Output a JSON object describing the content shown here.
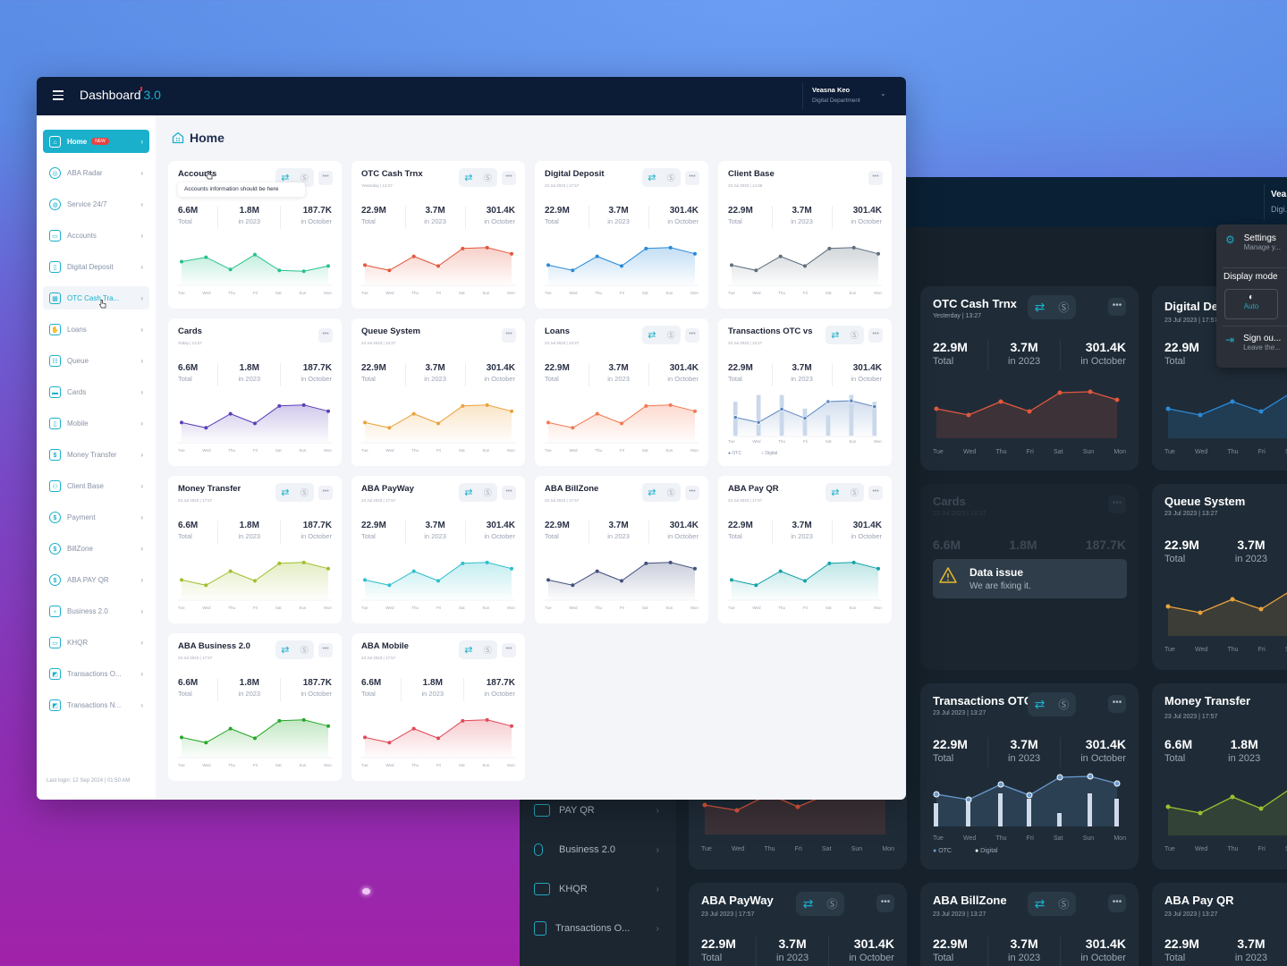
{
  "colors": {
    "accent": "#1ab0cc",
    "topbar": "#0c1b36",
    "badge": "#e8423f"
  },
  "app": {
    "title": "Dashboard",
    "version": "3.0",
    "user_name": "Veasna Keo",
    "user_department": "Digital Department"
  },
  "sidebar": {
    "items": [
      {
        "label": "Home",
        "badge": "NEW",
        "icon": "home-icon",
        "active": true
      },
      {
        "label": "ABA Radar",
        "icon": "radar-icon"
      },
      {
        "label": "Service 24/7",
        "icon": "service-24-7-icon"
      },
      {
        "label": "Accounts",
        "icon": "wallet-icon"
      },
      {
        "label": "Digital Deposit",
        "icon": "digital-deposit-icon"
      },
      {
        "label": "OTC Cash Tra...",
        "icon": "bank-building-icon",
        "hover": true
      },
      {
        "label": "Loans",
        "icon": "loan-hand-icon"
      },
      {
        "label": "Queue",
        "icon": "queue-people-icon"
      },
      {
        "label": "Cards",
        "icon": "card-icon"
      },
      {
        "label": "Mobile",
        "icon": "mobile-icon"
      },
      {
        "label": "Money Transfer",
        "icon": "money-transfer-icon"
      },
      {
        "label": "Client Base",
        "icon": "client-base-icon"
      },
      {
        "label": "Payment",
        "icon": "dollar-circle-icon"
      },
      {
        "label": "BillZone",
        "icon": "dollar-circle-icon"
      },
      {
        "label": "ABA PAY QR",
        "icon": "dollar-circle-icon"
      },
      {
        "label": "Business 2.0",
        "icon": "tie-icon"
      },
      {
        "label": "KHQR",
        "icon": "khqr-icon"
      },
      {
        "label": "Transactions O...",
        "icon": "chart-icon"
      },
      {
        "label": "Transactions N...",
        "icon": "chart-icon"
      }
    ],
    "last_login": "Last login: 12 Sep 2024 | 01:50 AM"
  },
  "main": {
    "page_title": "Home",
    "tooltip": "Accounts information should be here",
    "days": [
      "Tue",
      "Wed",
      "Thu",
      "Fri",
      "Sat",
      "Sun",
      "Mon"
    ],
    "cards": [
      {
        "title": "Accounts",
        "subtitle": "",
        "total": "6.6M",
        "total_label": "Total",
        "year": "1.8M",
        "year_label": "in 2023",
        "month": "187.7K",
        "month_label": "in October",
        "color": "#27c28a",
        "actions": true,
        "values": [
          62,
          67,
          53,
          70,
          52,
          51,
          57
        ]
      },
      {
        "title": "OTC Cash Trnx",
        "subtitle": "Yesterday | 13:27",
        "total": "22.9M",
        "total_label": "Total",
        "year": "3.7M",
        "year_label": "in 2023",
        "month": "301.4K",
        "month_label": "in October",
        "color": "#e2583e",
        "actions": true,
        "values": [
          58,
          52,
          68,
          57,
          77,
          78,
          71
        ]
      },
      {
        "title": "Digital Deposit",
        "subtitle": "23 Jul 2023 | 17:57",
        "total": "22.9M",
        "total_label": "Total",
        "year": "3.7M",
        "year_label": "in 2023",
        "month": "301.4K",
        "month_label": "in October",
        "color": "#2a8ad8",
        "actions": true,
        "values": [
          58,
          52,
          68,
          57,
          77,
          78,
          71
        ]
      },
      {
        "title": "Client Base",
        "subtitle": "23 Jul 2023 | 14:38",
        "total": "22.9M",
        "total_label": "Total",
        "year": "3.7M",
        "year_label": "in 2023",
        "month": "301.4K",
        "month_label": "in October",
        "color": "#5f6e7c",
        "actions": false,
        "values": [
          58,
          52,
          68,
          57,
          77,
          78,
          71
        ]
      },
      {
        "title": "Cards",
        "subtitle": "Today | 13:27",
        "total": "6.6M",
        "total_label": "Total",
        "year": "1.8M",
        "year_label": "in 2023",
        "month": "187.7K",
        "month_label": "in October",
        "color": "#5b3fb8",
        "actions": false,
        "values": [
          58,
          52,
          68,
          57,
          77,
          78,
          71
        ]
      },
      {
        "title": "Queue System",
        "subtitle": "23 Jul 2023 | 13:27",
        "total": "22.9M",
        "total_label": "Total",
        "year": "3.7M",
        "year_label": "in 2023",
        "month": "301.4K",
        "month_label": "in October",
        "color": "#eaa23a",
        "actions": false,
        "values": [
          58,
          52,
          68,
          57,
          77,
          78,
          71
        ]
      },
      {
        "title": "Loans",
        "subtitle": "23 Jul 2023 | 13:27",
        "total": "22.9M",
        "total_label": "Total",
        "year": "3.7M",
        "year_label": "in 2023",
        "month": "301.4K",
        "month_label": "in October",
        "color": "#f47a52",
        "actions": true,
        "values": [
          58,
          52,
          68,
          57,
          77,
          78,
          71
        ]
      },
      {
        "title": "Transactions OTC vs",
        "subtitle": "23 Jul 2023 | 13:27",
        "total": "22.9M",
        "total_label": "Total",
        "year": "3.7M",
        "year_label": "in 2023",
        "month": "301.4K",
        "month_label": "in October",
        "color": "#5b86c0",
        "actions": true,
        "values": [
          58,
          52,
          68,
          57,
          77,
          78,
          71
        ],
        "bars": [
          40,
          48,
          48,
          32,
          24,
          48,
          40
        ],
        "legend": [
          "OTC",
          "Digital"
        ]
      },
      {
        "title": "Money Transfer",
        "subtitle": "23 Jul 2023 | 17:57",
        "total": "6.6M",
        "total_label": "Total",
        "year": "1.8M",
        "year_label": "in 2023",
        "month": "187.7K",
        "month_label": "in October",
        "color": "#9ec02e",
        "actions": true,
        "values": [
          58,
          52,
          68,
          57,
          77,
          78,
          71
        ]
      },
      {
        "title": "ABA PayWay",
        "subtitle": "23 Jul 2023 | 17:57",
        "total": "22.9M",
        "total_label": "Total",
        "year": "3.7M",
        "year_label": "in 2023",
        "month": "301.4K",
        "month_label": "in October",
        "color": "#2fbfcc",
        "actions": true,
        "values": [
          58,
          52,
          68,
          57,
          77,
          78,
          71
        ]
      },
      {
        "title": "ABA BillZone",
        "subtitle": "23 Jul 2023 | 17:57",
        "total": "22.9M",
        "total_label": "Total",
        "year": "3.7M",
        "year_label": "in 2023",
        "month": "301.4K",
        "month_label": "in October",
        "color": "#44507e",
        "actions": true,
        "values": [
          58,
          52,
          68,
          57,
          77,
          78,
          71
        ]
      },
      {
        "title": "ABA Pay QR",
        "subtitle": "23 Jul 2023 | 17:57",
        "total": "22.9M",
        "total_label": "Total",
        "year": "3.7M",
        "year_label": "in 2023",
        "month": "301.4K",
        "month_label": "in October",
        "color": "#15a3a8",
        "actions": true,
        "values": [
          58,
          52,
          68,
          57,
          77,
          78,
          71
        ]
      },
      {
        "title": "ABA Business 2.0",
        "subtitle": "23 Jul 2023 | 17:57",
        "total": "6.6M",
        "total_label": "Total",
        "year": "1.8M",
        "year_label": "in 2023",
        "month": "187.7K",
        "month_label": "in October",
        "color": "#26a829",
        "actions": true,
        "values": [
          58,
          52,
          68,
          57,
          77,
          78,
          71
        ]
      },
      {
        "title": "ABA Mobile",
        "subtitle": "23 Jul 2023 | 17:57",
        "total": "6.6M",
        "total_label": "Total",
        "year": "1.8M",
        "year_label": "in 2023",
        "month": "187.7K",
        "month_label": "in October",
        "color": "#e04a58",
        "actions": true,
        "values": [
          58,
          52,
          68,
          57,
          77,
          78,
          71
        ]
      }
    ]
  },
  "dark_window": {
    "user_name": "Vea...",
    "user_department": "Digi...",
    "menu": {
      "settings": "Settings",
      "settings_sub": "Manage y...",
      "display_mode": "Display mode",
      "auto": "Auto",
      "sign_out": "Sign ou...",
      "sign_out_sub": "Leave the..."
    },
    "sidebar": [
      {
        "label": "PAY QR"
      },
      {
        "label": "Business 2.0"
      },
      {
        "label": "KHQR"
      },
      {
        "label": "Transactions O..."
      }
    ],
    "data_issue": {
      "title": "Data issue",
      "subtitle": "We are fixing it."
    },
    "cards": [
      {
        "title": "OTC Cash Trnx",
        "subtitle": "Yesterday | 13:27",
        "total": "22.9M",
        "year": "3.7M",
        "month": "301.4K",
        "color": "#e2583e"
      },
      {
        "title": "Digital De...",
        "subtitle": "23 Jul 2023 | 17:57",
        "total": "22.9M",
        "color": "#2a8ad8"
      },
      {
        "title": "Cards",
        "subtitle": "23 Jul 2023 | 13:27",
        "total": "6.6M",
        "year": "1.8M",
        "month": "187.7K",
        "color": "#3b3f8f"
      },
      {
        "title": "Queue System",
        "subtitle": "23 Jul 2023 | 13:27",
        "total": "22.9M",
        "year": "3.7M",
        "color": "#eaa23a"
      },
      {
        "title": "Transactions OTC vs",
        "subtitle": "23 Jul 2023 | 13:27",
        "total": "22.9M",
        "year": "3.7M",
        "month": "301.4K",
        "color": "#6a9ad0",
        "legend": [
          "OTC",
          "Digital"
        ]
      },
      {
        "title": "Money Transfer",
        "subtitle": "23 Jul 2023 | 17:57",
        "total": "6.6M",
        "year": "1.8M",
        "color": "#9ec02e"
      },
      {
        "title": "ABA PayWay",
        "subtitle": "23 Jul 2023 | 17:57",
        "total": "22.9M",
        "year": "3.7M",
        "month": "301.4K"
      },
      {
        "title": "ABA BillZone",
        "subtitle": "23 Jul 2023 | 13:27",
        "total": "22.9M",
        "year": "3.7M",
        "month": "301.4K"
      },
      {
        "title": "ABA Pay QR",
        "subtitle": "23 Jul 2023 | 13:27",
        "total": "22.9M",
        "year": "3.7M"
      }
    ],
    "labels": {
      "total": "Total",
      "year": "in 2023",
      "month": "in October"
    }
  }
}
